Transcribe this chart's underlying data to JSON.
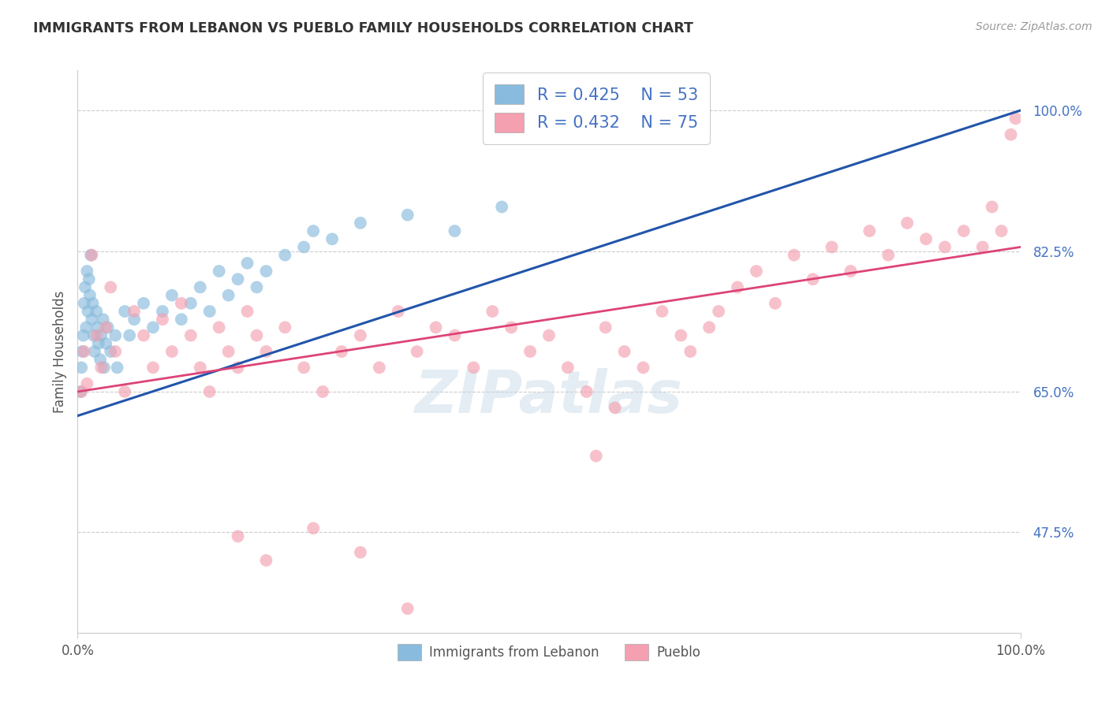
{
  "title": "IMMIGRANTS FROM LEBANON VS PUEBLO FAMILY HOUSEHOLDS CORRELATION CHART",
  "source_text": "Source: ZipAtlas.com",
  "ylabel": "Family Households",
  "xlim": [
    0.0,
    100.0
  ],
  "ylim": [
    35.0,
    105.0
  ],
  "yticks": [
    47.5,
    65.0,
    82.5,
    100.0
  ],
  "xticks": [
    0.0,
    100.0
  ],
  "xtick_labels": [
    "0.0%",
    "100.0%"
  ],
  "ytick_labels": [
    "47.5%",
    "65.0%",
    "82.5%",
    "100.0%"
  ],
  "legend_r1": "R = 0.425",
  "legend_n1": "N = 53",
  "legend_r2": "R = 0.432",
  "legend_n2": "N = 75",
  "legend_label1": "Immigrants from Lebanon",
  "legend_label2": "Pueblo",
  "color_blue": "#88bbdd",
  "color_pink": "#f4a0b0",
  "line_color_blue": "#2255aa",
  "line_color_pink": "#dd4477",
  "watermark": "ZIPatlas",
  "blue_x": [
    0.3,
    0.4,
    0.5,
    0.6,
    0.7,
    0.8,
    0.9,
    1.0,
    1.1,
    1.2,
    1.3,
    1.4,
    1.5,
    1.6,
    1.7,
    1.8,
    2.0,
    2.1,
    2.2,
    2.4,
    2.5,
    2.7,
    2.8,
    3.0,
    3.2,
    3.5,
    4.0,
    4.2,
    5.0,
    5.5,
    6.0,
    7.0,
    8.0,
    9.0,
    10.0,
    11.0,
    12.0,
    13.0,
    14.0,
    15.0,
    16.0,
    17.0,
    18.0,
    19.0,
    20.0,
    22.0,
    24.0,
    25.0,
    27.0,
    30.0,
    35.0,
    40.0,
    45.0
  ],
  "blue_y": [
    65.0,
    68.0,
    70.0,
    72.0,
    76.0,
    78.0,
    73.0,
    80.0,
    75.0,
    79.0,
    77.0,
    82.0,
    74.0,
    76.0,
    72.0,
    70.0,
    75.0,
    73.0,
    71.0,
    69.0,
    72.0,
    74.0,
    68.0,
    71.0,
    73.0,
    70.0,
    72.0,
    68.0,
    75.0,
    72.0,
    74.0,
    76.0,
    73.0,
    75.0,
    77.0,
    74.0,
    76.0,
    78.0,
    75.0,
    80.0,
    77.0,
    79.0,
    81.0,
    78.0,
    80.0,
    82.0,
    83.0,
    85.0,
    84.0,
    86.0,
    87.0,
    85.0,
    88.0
  ],
  "pink_x": [
    0.4,
    0.7,
    1.0,
    1.5,
    2.0,
    2.5,
    3.0,
    3.5,
    4.0,
    5.0,
    6.0,
    7.0,
    8.0,
    9.0,
    10.0,
    11.0,
    12.0,
    13.0,
    14.0,
    15.0,
    16.0,
    17.0,
    18.0,
    19.0,
    20.0,
    22.0,
    24.0,
    26.0,
    28.0,
    30.0,
    32.0,
    34.0,
    36.0,
    38.0,
    40.0,
    42.0,
    44.0,
    46.0,
    48.0,
    50.0,
    52.0,
    54.0,
    56.0,
    57.0,
    58.0,
    60.0,
    62.0,
    64.0,
    65.0,
    67.0,
    68.0,
    70.0,
    72.0,
    74.0,
    76.0,
    78.0,
    80.0,
    82.0,
    84.0,
    86.0,
    88.0,
    90.0,
    92.0,
    94.0,
    96.0,
    97.0,
    98.0,
    99.0,
    99.5,
    17.0,
    20.0,
    25.0,
    30.0,
    35.0,
    55.0
  ],
  "pink_y": [
    65.0,
    70.0,
    66.0,
    82.0,
    72.0,
    68.0,
    73.0,
    78.0,
    70.0,
    65.0,
    75.0,
    72.0,
    68.0,
    74.0,
    70.0,
    76.0,
    72.0,
    68.0,
    65.0,
    73.0,
    70.0,
    68.0,
    75.0,
    72.0,
    70.0,
    73.0,
    68.0,
    65.0,
    70.0,
    72.0,
    68.0,
    75.0,
    70.0,
    73.0,
    72.0,
    68.0,
    75.0,
    73.0,
    70.0,
    72.0,
    68.0,
    65.0,
    73.0,
    63.0,
    70.0,
    68.0,
    75.0,
    72.0,
    70.0,
    73.0,
    75.0,
    78.0,
    80.0,
    76.0,
    82.0,
    79.0,
    83.0,
    80.0,
    85.0,
    82.0,
    86.0,
    84.0,
    83.0,
    85.0,
    83.0,
    88.0,
    85.0,
    97.0,
    99.0,
    47.0,
    44.0,
    48.0,
    45.0,
    38.0,
    57.0
  ],
  "blue_line_x0": 0.0,
  "blue_line_x1": 100.0,
  "blue_line_y0": 62.0,
  "blue_line_y1": 100.0,
  "pink_line_x0": 0.0,
  "pink_line_x1": 100.0,
  "pink_line_y0": 65.0,
  "pink_line_y1": 83.0
}
